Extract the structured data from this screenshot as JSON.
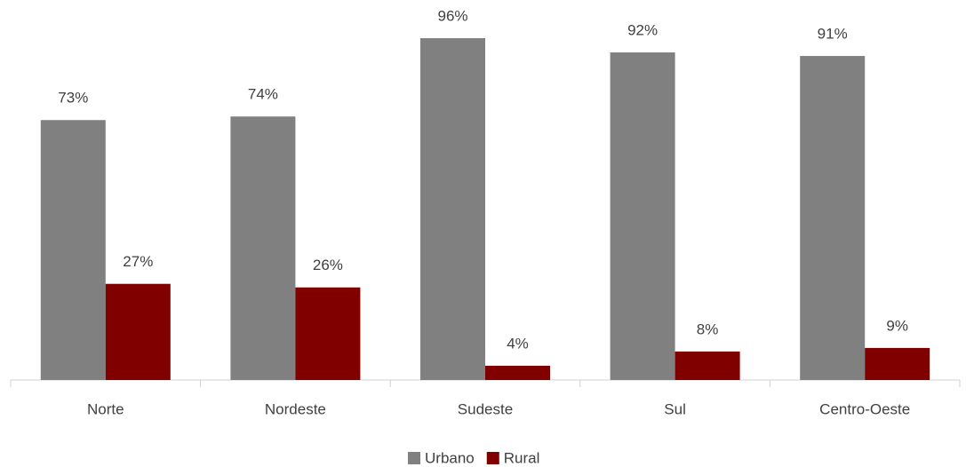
{
  "chart_data": {
    "type": "bar",
    "categories": [
      "Norte",
      "Nordeste",
      "Sudeste",
      "Sul",
      "Centro-Oeste"
    ],
    "series": [
      {
        "name": "Urbano",
        "color": "#808080",
        "values": [
          73,
          74,
          96,
          92,
          91
        ],
        "value_labels": [
          "73%",
          "74%",
          "96%",
          "92%",
          "91%"
        ]
      },
      {
        "name": "Rural",
        "color": "#800000",
        "values": [
          27,
          26,
          4,
          8,
          9
        ],
        "value_labels": [
          "27%",
          "26%",
          "4%",
          "8%",
          "9%"
        ]
      }
    ],
    "legend": "bottom"
  }
}
